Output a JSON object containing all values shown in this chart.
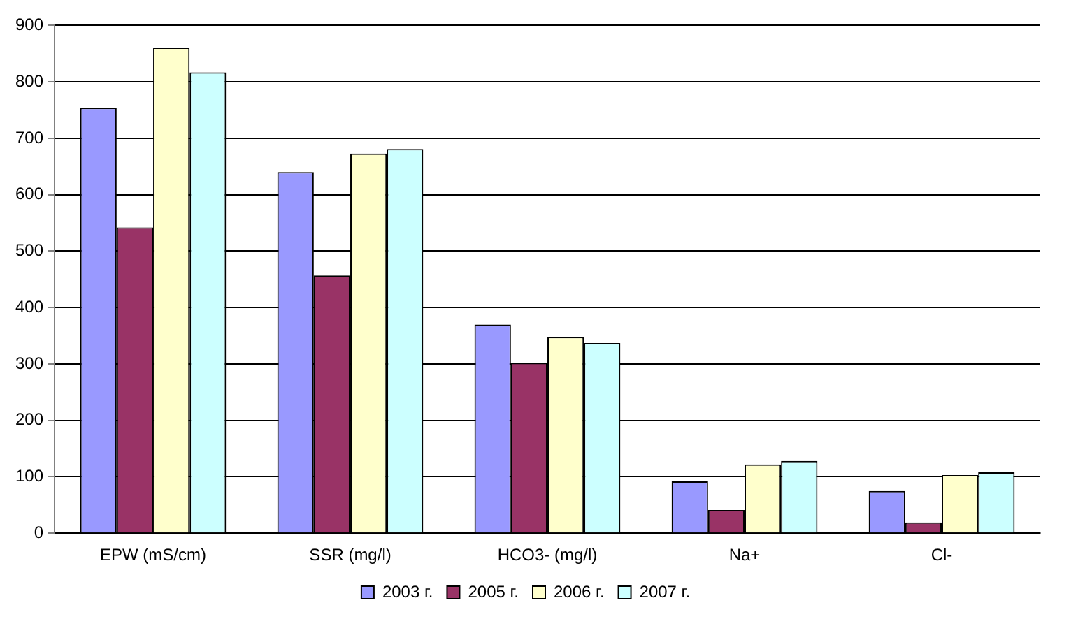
{
  "chart_data": {
    "type": "bar",
    "categories": [
      "EPW (mS/cm)",
      "SSR (mg/l)",
      "HCO3- (mg/l)",
      "Na+",
      "Cl-"
    ],
    "series": [
      {
        "name": "2003 г.",
        "color": "#9999ff",
        "values": [
          754,
          640,
          370,
          92,
          75
        ]
      },
      {
        "name": "2005 г.",
        "color": "#993366",
        "values": [
          542,
          457,
          302,
          41,
          19
        ]
      },
      {
        "name": "2006 г.",
        "color": "#ffffcc",
        "values": [
          861,
          673,
          348,
          122,
          103
        ]
      },
      {
        "name": "2007 г.",
        "color": "#ccffff",
        "values": [
          817,
          681,
          337,
          128,
          108
        ]
      }
    ],
    "ylim": [
      0,
      900
    ],
    "yticks": [
      0,
      100,
      200,
      300,
      400,
      500,
      600,
      700,
      800,
      900
    ],
    "grid": "y",
    "legend": "bottom"
  }
}
